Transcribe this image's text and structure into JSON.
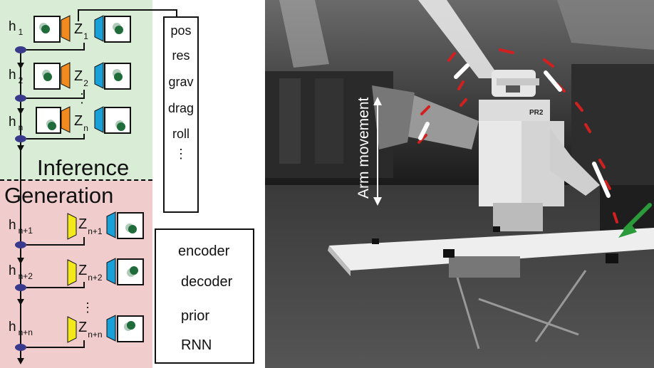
{
  "sections": {
    "inference": "Inference",
    "generation": "Generation"
  },
  "inference_steps": [
    {
      "h": "h",
      "h_sub": "1",
      "z": "Z",
      "z_sub": "1"
    },
    {
      "h": "h",
      "h_sub": "2",
      "z": "Z",
      "z_sub": "2"
    },
    {
      "h": "h",
      "h_sub": "n",
      "z": "Z",
      "z_sub": "n"
    }
  ],
  "generation_steps": [
    {
      "h": "h",
      "h_sub": "n+1",
      "z": "Z",
      "z_sub": "n+1"
    },
    {
      "h": "h",
      "h_sub": "n+2",
      "z": "Z",
      "z_sub": "n+2"
    },
    {
      "h": "h",
      "h_sub": "n+n",
      "z": "Z",
      "z_sub": "n+n"
    }
  ],
  "ellipsis_vertical": "⋮",
  "state_box": {
    "items": [
      "pos",
      "res",
      "grav",
      "drag",
      "roll",
      "⋮"
    ]
  },
  "legend": [
    {
      "label": "encoder",
      "shape": "trapezoid",
      "color": "#f28a1e"
    },
    {
      "label": "decoder",
      "shape": "trapezoid",
      "color": "#1aa0d8"
    },
    {
      "label": "prior",
      "shape": "trapezoid",
      "color": "#f2e81c"
    },
    {
      "label": "RNN",
      "shape": "ellipse",
      "color": "#3a3a8c"
    }
  ],
  "photo": {
    "arm_text": "Arm movement",
    "robot_label": "PR2"
  },
  "colors": {
    "inference_bg": "#d8ecd6",
    "generation_bg": "#f0cccc",
    "encoder": "#f28a1e",
    "decoder": "#1aa0d8",
    "prior": "#f2e81c",
    "rnn": "#3a3a8c",
    "ball": "#1f6b3a",
    "trajectory_red": "#d22020",
    "green_arrow": "#2a9a3a"
  }
}
